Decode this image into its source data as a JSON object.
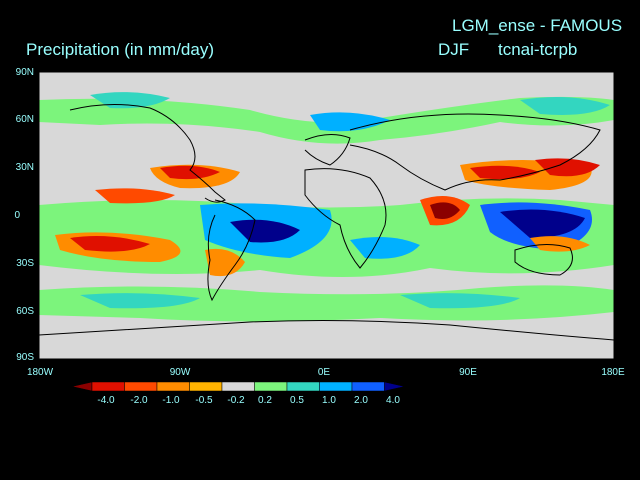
{
  "header": {
    "model_title": "LGM_ense - FAMOUS",
    "variable": "Precipitation (in mm/day)",
    "season": "DJF",
    "experiment": "tcnai-tcrpb"
  },
  "axes": {
    "lat_labels": [
      "90N",
      "60N",
      "30N",
      "0",
      "30S",
      "60S",
      "90S"
    ],
    "lon_labels": [
      "180W",
      "90W",
      "0E",
      "90E",
      "180E"
    ]
  },
  "colorbar": {
    "labels": [
      "-4.0",
      "-2.0",
      "-1.0",
      "-0.5",
      "-0.2",
      "0.2",
      "0.5",
      "1.0",
      "2.0",
      "4.0"
    ],
    "colors": [
      "#8b0000",
      "#e01000",
      "#ff4a00",
      "#ff8c00",
      "#ffb300",
      "#d8d8d8",
      "#7cf47c",
      "#33d6c0",
      "#00b0ff",
      "#1060ff",
      "#00008b"
    ]
  },
  "colors": {
    "text": "#99ffff",
    "background": "#000000",
    "neutral": "#d8d8d8"
  }
}
